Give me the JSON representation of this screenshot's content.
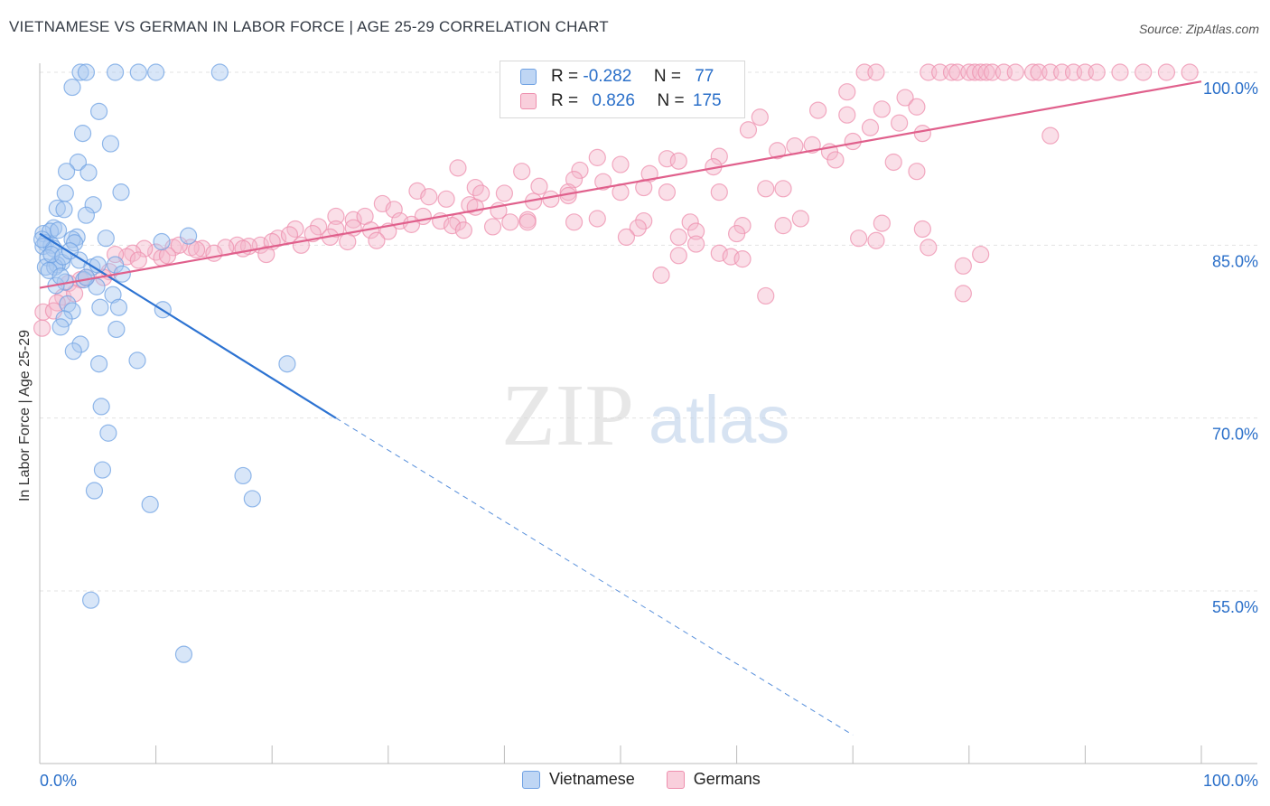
{
  "header": {
    "title": "VIETNAMESE VS GERMAN IN LABOR FORCE | AGE 25-29 CORRELATION CHART",
    "source": "Source: ZipAtlas.com"
  },
  "watermark": {
    "zip": "ZIP",
    "atlas": "atlas"
  },
  "legend": {
    "rows": [
      {
        "r_label": "R =",
        "r_value": "-0.282",
        "n_label": "N =",
        "n_value": "77",
        "color": "#a9c8f0"
      },
      {
        "r_label": "R =",
        "r_value": "0.826",
        "n_label": "N =",
        "n_value": "175",
        "color": "#f5b8cb"
      }
    ]
  },
  "chart_data": {
    "type": "scatter",
    "xlabel": "",
    "ylabel": "In Labor Force | Age 25-29",
    "xlim": [
      0,
      100
    ],
    "ylim": [
      42.5,
      102
    ],
    "x_tick_labels": [
      "0.0%",
      "100.0%"
    ],
    "y_ticks": [
      55,
      70,
      85,
      100
    ],
    "y_tick_labels": [
      "55.0%",
      "70.0%",
      "85.0%",
      "100.0%"
    ],
    "grid": true,
    "legend_position": "bottom",
    "series": [
      {
        "name": "Vietnamese",
        "color": "#6fa1e3",
        "fill": "#a9c8f0",
        "line_color": "#2d73d2",
        "trend": {
          "x0": 0,
          "y0": 86.0,
          "x1": 25.5,
          "y1": 70.0,
          "dash_to_x": 70,
          "dash_to_y": 42.5
        },
        "points": [
          [
            3.5,
            100
          ],
          [
            4,
            100
          ],
          [
            6.5,
            100
          ],
          [
            8.5,
            100
          ],
          [
            10,
            100
          ],
          [
            15.5,
            100
          ],
          [
            2.8,
            98.7
          ],
          [
            5.1,
            96.6
          ],
          [
            3.7,
            94.7
          ],
          [
            6.1,
            93.8
          ],
          [
            3.3,
            92.2
          ],
          [
            2.3,
            91.4
          ],
          [
            4.2,
            91.3
          ],
          [
            7.0,
            89.6
          ],
          [
            2.2,
            89.5
          ],
          [
            1.5,
            88.2
          ],
          [
            2.1,
            88.1
          ],
          [
            4.6,
            88.5
          ],
          [
            4.0,
            87.6
          ],
          [
            1.2,
            86.5
          ],
          [
            0.3,
            86.0
          ],
          [
            0.9,
            86.2
          ],
          [
            1.6,
            86.3
          ],
          [
            3.2,
            85.7
          ],
          [
            5.7,
            85.6
          ],
          [
            2.8,
            85.5
          ],
          [
            0.5,
            85.2
          ],
          [
            1.0,
            85.0
          ],
          [
            0.3,
            84.9
          ],
          [
            1.2,
            84.7
          ],
          [
            10.5,
            85.3
          ],
          [
            12.8,
            85.8
          ],
          [
            0.7,
            83.9
          ],
          [
            1.9,
            83.5
          ],
          [
            3.4,
            83.7
          ],
          [
            0.5,
            83.1
          ],
          [
            1.5,
            83.3
          ],
          [
            1.3,
            83.1
          ],
          [
            4.5,
            83.1
          ],
          [
            5.0,
            83.3
          ],
          [
            6.5,
            83.3
          ],
          [
            3.8,
            82.0
          ],
          [
            7.1,
            82.5
          ],
          [
            2.2,
            81.8
          ],
          [
            4.9,
            81.4
          ],
          [
            1.4,
            81.5
          ],
          [
            6.3,
            80.7
          ],
          [
            2.4,
            79.9
          ],
          [
            2.8,
            79.3
          ],
          [
            5.2,
            79.6
          ],
          [
            6.8,
            79.6
          ],
          [
            10.6,
            79.4
          ],
          [
            2.1,
            78.6
          ],
          [
            1.8,
            77.9
          ],
          [
            6.6,
            77.7
          ],
          [
            3.5,
            76.4
          ],
          [
            2.9,
            75.8
          ],
          [
            8.4,
            75.0
          ],
          [
            5.1,
            74.7
          ],
          [
            21.3,
            74.7
          ],
          [
            5.3,
            71.0
          ],
          [
            5.9,
            68.7
          ],
          [
            5.4,
            65.5
          ],
          [
            17.5,
            65.0
          ],
          [
            4.7,
            63.7
          ],
          [
            18.3,
            63.0
          ],
          [
            9.5,
            62.5
          ],
          [
            4.4,
            54.2
          ],
          [
            12.4,
            49.5
          ],
          [
            1.0,
            84.2
          ],
          [
            2.0,
            84.0
          ],
          [
            0.2,
            85.5
          ],
          [
            3.0,
            85.2
          ],
          [
            0.8,
            82.8
          ],
          [
            2.6,
            84.5
          ],
          [
            1.8,
            82.3
          ],
          [
            4.0,
            82.2
          ]
        ]
      },
      {
        "name": "Germans",
        "color": "#ee8fae",
        "fill": "#f5b8cb",
        "line_color": "#e0608c",
        "trend": {
          "x0": 0,
          "y0": 81.3,
          "x1": 100,
          "y1": 99.2
        },
        "points": [
          [
            71,
            100
          ],
          [
            72,
            100
          ],
          [
            76.5,
            100
          ],
          [
            77.5,
            100
          ],
          [
            78.5,
            100
          ],
          [
            79,
            100
          ],
          [
            80,
            100
          ],
          [
            80.5,
            100
          ],
          [
            81,
            100
          ],
          [
            81.5,
            100
          ],
          [
            82,
            100
          ],
          [
            83,
            100
          ],
          [
            84,
            100
          ],
          [
            85.5,
            100
          ],
          [
            86,
            100
          ],
          [
            87,
            100
          ],
          [
            88,
            100
          ],
          [
            89,
            100
          ],
          [
            90,
            100
          ],
          [
            91,
            100
          ],
          [
            93,
            100
          ],
          [
            95,
            100
          ],
          [
            97,
            100
          ],
          [
            99,
            100
          ],
          [
            69.5,
            98.3
          ],
          [
            74.5,
            97.8
          ],
          [
            75.5,
            97.0
          ],
          [
            72.5,
            96.8
          ],
          [
            67,
            96.7
          ],
          [
            69.5,
            96.3
          ],
          [
            74,
            95.6
          ],
          [
            62,
            96.1
          ],
          [
            61,
            95.0
          ],
          [
            71.5,
            95.2
          ],
          [
            76,
            94.7
          ],
          [
            70,
            94.0
          ],
          [
            66.5,
            93.7
          ],
          [
            65,
            93.6
          ],
          [
            68,
            93.1
          ],
          [
            87,
            94.5
          ],
          [
            63.5,
            93.2
          ],
          [
            58.5,
            92.7
          ],
          [
            54,
            92.5
          ],
          [
            55,
            92.3
          ],
          [
            73.5,
            92.2
          ],
          [
            68.5,
            92.4
          ],
          [
            48,
            92.6
          ],
          [
            50,
            92.0
          ],
          [
            58,
            91.8
          ],
          [
            46.5,
            91.5
          ],
          [
            75.5,
            91.4
          ],
          [
            52.5,
            91.2
          ],
          [
            46.0,
            90.7
          ],
          [
            36,
            91.7
          ],
          [
            41.5,
            91.4
          ],
          [
            48.5,
            90.5
          ],
          [
            52.0,
            90.0
          ],
          [
            62.5,
            89.9
          ],
          [
            64,
            89.9
          ],
          [
            37.5,
            90.0
          ],
          [
            43,
            90.1
          ],
          [
            45.5,
            89.6
          ],
          [
            50,
            89.6
          ],
          [
            54,
            89.6
          ],
          [
            58.5,
            89.6
          ],
          [
            32.5,
            89.7
          ],
          [
            38,
            89.5
          ],
          [
            40,
            89.5
          ],
          [
            33.5,
            89.2
          ],
          [
            44,
            89.0
          ],
          [
            35,
            89.0
          ],
          [
            42.5,
            88.8
          ],
          [
            29.5,
            88.6
          ],
          [
            37,
            88.5
          ],
          [
            30.5,
            88.1
          ],
          [
            39.5,
            88.0
          ],
          [
            45.5,
            89.3
          ],
          [
            37.5,
            88.3
          ],
          [
            25.5,
            87.5
          ],
          [
            27,
            87.2
          ],
          [
            28,
            87.5
          ],
          [
            33,
            87.5
          ],
          [
            34.5,
            87.1
          ],
          [
            36,
            87.0
          ],
          [
            40.5,
            87.0
          ],
          [
            42,
            87.2
          ],
          [
            46,
            87.0
          ],
          [
            48,
            87.3
          ],
          [
            52,
            87.1
          ],
          [
            56,
            87.0
          ],
          [
            31,
            87.1
          ],
          [
            32,
            86.8
          ],
          [
            24,
            86.6
          ],
          [
            25.5,
            86.4
          ],
          [
            27,
            86.5
          ],
          [
            22,
            86.4
          ],
          [
            23.5,
            86.0
          ],
          [
            28.5,
            86.3
          ],
          [
            30,
            86.2
          ],
          [
            35.5,
            86.7
          ],
          [
            42,
            87.0
          ],
          [
            39,
            86.6
          ],
          [
            51.5,
            86.5
          ],
          [
            60.5,
            86.7
          ],
          [
            65.5,
            87.3
          ],
          [
            36.5,
            86.3
          ],
          [
            20.5,
            85.6
          ],
          [
            21.5,
            85.9
          ],
          [
            25,
            85.7
          ],
          [
            26.5,
            85.3
          ],
          [
            29,
            85.4
          ],
          [
            22.5,
            85.0
          ],
          [
            19,
            85.0
          ],
          [
            20,
            85.3
          ],
          [
            17,
            85.0
          ],
          [
            18,
            84.9
          ],
          [
            16,
            84.8
          ],
          [
            14,
            84.7
          ],
          [
            15,
            84.3
          ],
          [
            13,
            84.8
          ],
          [
            11.5,
            84.8
          ],
          [
            10,
            84.4
          ],
          [
            12,
            85.0
          ],
          [
            9,
            84.7
          ],
          [
            8,
            84.3
          ],
          [
            7.5,
            84.0
          ],
          [
            6.5,
            84.2
          ],
          [
            8.5,
            83.7
          ],
          [
            10.5,
            83.9
          ],
          [
            11,
            84.1
          ],
          [
            13.5,
            84.6
          ],
          [
            17.5,
            84.7
          ],
          [
            19.5,
            84.2
          ],
          [
            6,
            82.7
          ],
          [
            5.5,
            82.2
          ],
          [
            3.5,
            82.0
          ],
          [
            4.0,
            82.2
          ],
          [
            2.5,
            81.7
          ],
          [
            2.0,
            80.5
          ],
          [
            3.0,
            80.8
          ],
          [
            1.5,
            80.0
          ],
          [
            0.3,
            79.2
          ],
          [
            1.2,
            79.3
          ],
          [
            0.2,
            77.8
          ],
          [
            56.5,
            86.2
          ],
          [
            50.5,
            85.7
          ],
          [
            55,
            85.7
          ],
          [
            60,
            86.0
          ],
          [
            58.5,
            84.3
          ],
          [
            59.5,
            84.0
          ],
          [
            56.5,
            85.1
          ],
          [
            70.5,
            85.6
          ],
          [
            72.5,
            86.9
          ],
          [
            55,
            84.1
          ],
          [
            53.5,
            82.4
          ],
          [
            64,
            86.7
          ],
          [
            72,
            85.4
          ],
          [
            76,
            86.4
          ],
          [
            60.5,
            83.8
          ],
          [
            76.5,
            84.8
          ],
          [
            79.5,
            83.2
          ],
          [
            62.5,
            80.6
          ],
          [
            79.5,
            80.8
          ],
          [
            81,
            84.2
          ]
        ]
      }
    ]
  }
}
